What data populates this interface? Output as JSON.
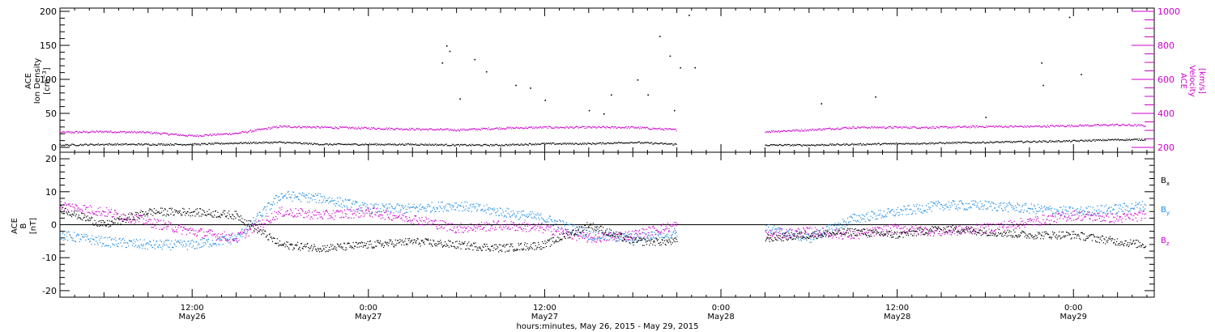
{
  "chart_data": [
    {
      "type": "scatter",
      "panel": "top",
      "x_unit": "hours since May26 00:00",
      "xlim": [
        3.0,
        77.5
      ],
      "left_axis": {
        "label_lines": [
          "ACE",
          "Ion Density",
          "[cm-3]"
        ],
        "ylim": [
          0,
          200
        ],
        "ticks": [
          "0",
          "50",
          "100",
          "150",
          "200"
        ]
      },
      "right_axis": {
        "label_lines": [
          "ACE",
          "Velocity",
          "[km/s]"
        ],
        "ylim": [
          200,
          1000
        ],
        "ticks": [
          "200",
          "400",
          "600",
          "800",
          "1000"
        ]
      },
      "series": [
        {
          "axis": "left",
          "color": "#000000",
          "x": [
            3,
            6,
            9,
            12,
            15,
            18,
            21,
            24,
            27,
            30,
            33,
            36,
            39,
            42,
            45,
            48,
            51,
            54,
            57,
            60,
            63,
            66,
            69,
            72,
            75,
            76.9
          ],
          "y": [
            4,
            5,
            5,
            5,
            7,
            8,
            5,
            5,
            5,
            4,
            4,
            6,
            6,
            8,
            5,
            null,
            4,
            4,
            5,
            6,
            7,
            8,
            9,
            10,
            12,
            12
          ]
        },
        {
          "axis": "right",
          "color": "#cc00cc",
          "x": [
            3,
            6,
            9,
            12,
            15,
            18,
            21,
            24,
            27,
            30,
            33,
            36,
            39,
            42,
            45,
            48,
            51,
            54,
            57,
            60,
            63,
            66,
            69,
            72,
            75,
            76.9
          ],
          "y": [
            290,
            295,
            290,
            270,
            285,
            325,
            320,
            315,
            310,
            305,
            315,
            320,
            320,
            320,
            305,
            null,
            295,
            305,
            320,
            320,
            320,
            325,
            325,
            330,
            335,
            330
          ]
        }
      ],
      "spikes": [
        {
          "x": 29.0,
          "y": 125
        },
        {
          "x": 29.3,
          "y": 150
        },
        {
          "x": 29.5,
          "y": 142
        },
        {
          "x": 30.2,
          "y": 72
        },
        {
          "x": 31.2,
          "y": 130
        },
        {
          "x": 32.0,
          "y": 112
        },
        {
          "x": 34.0,
          "y": 92
        },
        {
          "x": 35.0,
          "y": 88
        },
        {
          "x": 36.0,
          "y": 70
        },
        {
          "x": 39.0,
          "y": 55
        },
        {
          "x": 40.5,
          "y": 78
        },
        {
          "x": 42.3,
          "y": 100
        },
        {
          "x": 43.0,
          "y": 78
        },
        {
          "x": 43.8,
          "y": 164
        },
        {
          "x": 44.5,
          "y": 135
        },
        {
          "x": 44.8,
          "y": 55
        },
        {
          "x": 45.2,
          "y": 118
        },
        {
          "x": 45.8,
          "y": 195
        },
        {
          "x": 46.2,
          "y": 118
        },
        {
          "x": 40.0,
          "y": 50
        },
        {
          "x": 54.8,
          "y": 65
        },
        {
          "x": 58.5,
          "y": 75
        },
        {
          "x": 66.0,
          "y": 45
        },
        {
          "x": 69.8,
          "y": 125
        },
        {
          "x": 69.9,
          "y": 92
        },
        {
          "x": 71.7,
          "y": 192
        },
        {
          "x": 72.5,
          "y": 108
        }
      ]
    },
    {
      "type": "scatter",
      "panel": "bottom",
      "x_unit": "hours since May26 00:00",
      "xlim": [
        3.0,
        77.5
      ],
      "ylabel_lines": [
        "ACE",
        "B",
        "[nT]"
      ],
      "ylim": [
        -21,
        21
      ],
      "ticks": [
        "-20",
        "-10",
        "0",
        "10",
        "20"
      ],
      "zero_line": true,
      "series": [
        {
          "name": "Bx",
          "color": "#000000",
          "x": [
            3,
            6,
            9,
            12,
            15,
            18,
            21,
            24,
            27,
            30,
            33,
            36,
            39,
            42,
            45,
            48,
            51,
            54,
            57,
            60,
            63,
            66,
            69,
            72,
            75,
            76.9
          ],
          "y": [
            5,
            0,
            4,
            4,
            3,
            -6,
            -7,
            -6,
            -5,
            -6,
            -7,
            -6,
            0,
            -5,
            -5,
            null,
            -4,
            -3,
            -2,
            -3,
            -1,
            -2,
            -3,
            -3,
            -5,
            -6
          ]
        },
        {
          "name": "By",
          "color": "#1e8be0",
          "x": [
            3,
            6,
            9,
            12,
            15,
            18,
            21,
            24,
            27,
            30,
            33,
            36,
            39,
            42,
            45,
            48,
            51,
            54,
            57,
            60,
            63,
            66,
            69,
            72,
            75,
            76.9
          ],
          "y": [
            -3,
            -5,
            -6,
            -6,
            -4,
            9,
            8,
            5,
            5,
            6,
            4,
            2,
            -3,
            -4,
            -2,
            null,
            -1,
            -4,
            2,
            4,
            6,
            6,
            5,
            4,
            5,
            6
          ]
        },
        {
          "name": "Bz",
          "color": "#cc00cc",
          "x": [
            3,
            6,
            9,
            12,
            15,
            18,
            21,
            24,
            27,
            30,
            33,
            36,
            39,
            42,
            45,
            48,
            51,
            54,
            57,
            60,
            63,
            66,
            69,
            72,
            75,
            76.9
          ],
          "y": [
            6,
            4,
            1,
            -2,
            -4,
            4,
            3,
            4,
            2,
            -1,
            0,
            -1,
            -4,
            -3,
            0,
            null,
            -3,
            -2,
            -3,
            -1,
            -2,
            -1,
            1,
            3,
            2,
            3
          ]
        }
      ],
      "legend": [
        "B",
        "B",
        "B"
      ],
      "legend_subs": [
        "x",
        "y",
        "z"
      ]
    }
  ],
  "x_axis": {
    "ticks": [
      {
        "t": 12,
        "time": "12:00",
        "date": "May26"
      },
      {
        "t": 24,
        "time": "0:00",
        "date": "May27"
      },
      {
        "t": 36,
        "time": "12:00",
        "date": "May27"
      },
      {
        "t": 48,
        "time": "0:00",
        "date": "May28"
      },
      {
        "t": 60,
        "time": "12:00",
        "date": "May28"
      },
      {
        "t": 72,
        "time": "0:00",
        "date": "May29"
      }
    ],
    "title": "hours:minutes, May 26, 2015 - May 29, 2015"
  },
  "colors": {
    "density": "#000000",
    "velocity": "#cc00cc",
    "bx": "#000000",
    "by": "#1e8be0",
    "bz": "#cc00cc"
  }
}
